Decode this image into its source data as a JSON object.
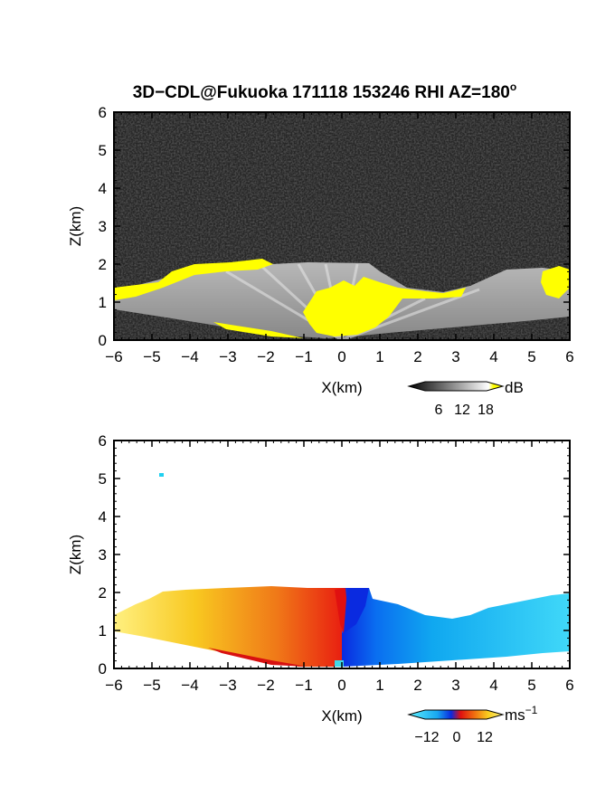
{
  "chart_data": [
    {
      "type": "heatmap",
      "title": "3D−CDL@Fukuoka 171118 153246 RHI AZ=180",
      "title_superscript": "o",
      "xlabel": "X(km)",
      "ylabel": "Z(km)",
      "xlim": [
        -6,
        6
      ],
      "ylim": [
        0,
        6
      ],
      "x_ticks": [
        "−6",
        "−5",
        "−4",
        "−3",
        "−2",
        "−1",
        "0",
        "1",
        "2",
        "3",
        "4",
        "5",
        "6"
      ],
      "y_ticks": [
        "0",
        "1",
        "2",
        "3",
        "4",
        "5",
        "6"
      ],
      "colorbar": {
        "label": "dB",
        "ticks": [
          "6",
          "12",
          "18"
        ],
        "range": [
          0,
          20
        ],
        "colors": [
          "#000000",
          "#ffffff",
          "#ffff00"
        ]
      },
      "features": [
        {
          "name": "signal",
          "x": [
            -6,
            -4,
            -2,
            -1,
            0,
            1,
            2,
            3,
            4,
            5,
            6
          ],
          "top": [
            1.3,
            1.5,
            1.7,
            2.0,
            2.0,
            1.8,
            1.2,
            1.3,
            1.5,
            1.9,
            1.7
          ]
        },
        {
          "name": "yellow saturation",
          "x": [
            -6,
            -4,
            -2,
            0,
            1,
            2,
            3
          ],
          "top": [
            1.35,
            1.9,
            2.0,
            1.5,
            1.6,
            1.3,
            1.25
          ]
        }
      ]
    },
    {
      "type": "heatmap",
      "xlabel": "X(km)",
      "ylabel": "Z(km)",
      "xlim": [
        -6,
        6
      ],
      "ylim": [
        0,
        6
      ],
      "x_ticks": [
        "−6",
        "−5",
        "−4",
        "−3",
        "−2",
        "−1",
        "0",
        "1",
        "2",
        "3",
        "4",
        "5",
        "6"
      ],
      "y_ticks": [
        "0",
        "1",
        "2",
        "3",
        "4",
        "5",
        "6"
      ],
      "colorbar": {
        "label": "ms",
        "label_superscript": "−1",
        "ticks": [
          "−12",
          "0",
          "12"
        ],
        "range": [
          -16,
          16
        ],
        "colors": [
          "#5ef0ff",
          "#18a8f0",
          "#0a2ae0",
          "#e01010",
          "#f07010",
          "#f8d020",
          "#fff080"
        ]
      },
      "features": [
        {
          "name": "approaching (positive)",
          "x": [
            -6,
            -4,
            -2,
            -1,
            0
          ],
          "top": [
            1.3,
            2.0,
            2.05,
            2.05,
            2.05
          ],
          "velocity_range": [
            4,
            14
          ]
        },
        {
          "name": "receding (negative)",
          "x": [
            0,
            1,
            2,
            3,
            4,
            5,
            6
          ],
          "top": [
            2.05,
            1.7,
            1.2,
            1.3,
            1.5,
            1.65,
            1.85
          ],
          "velocity_range": [
            -14,
            -6
          ]
        }
      ]
    }
  ]
}
